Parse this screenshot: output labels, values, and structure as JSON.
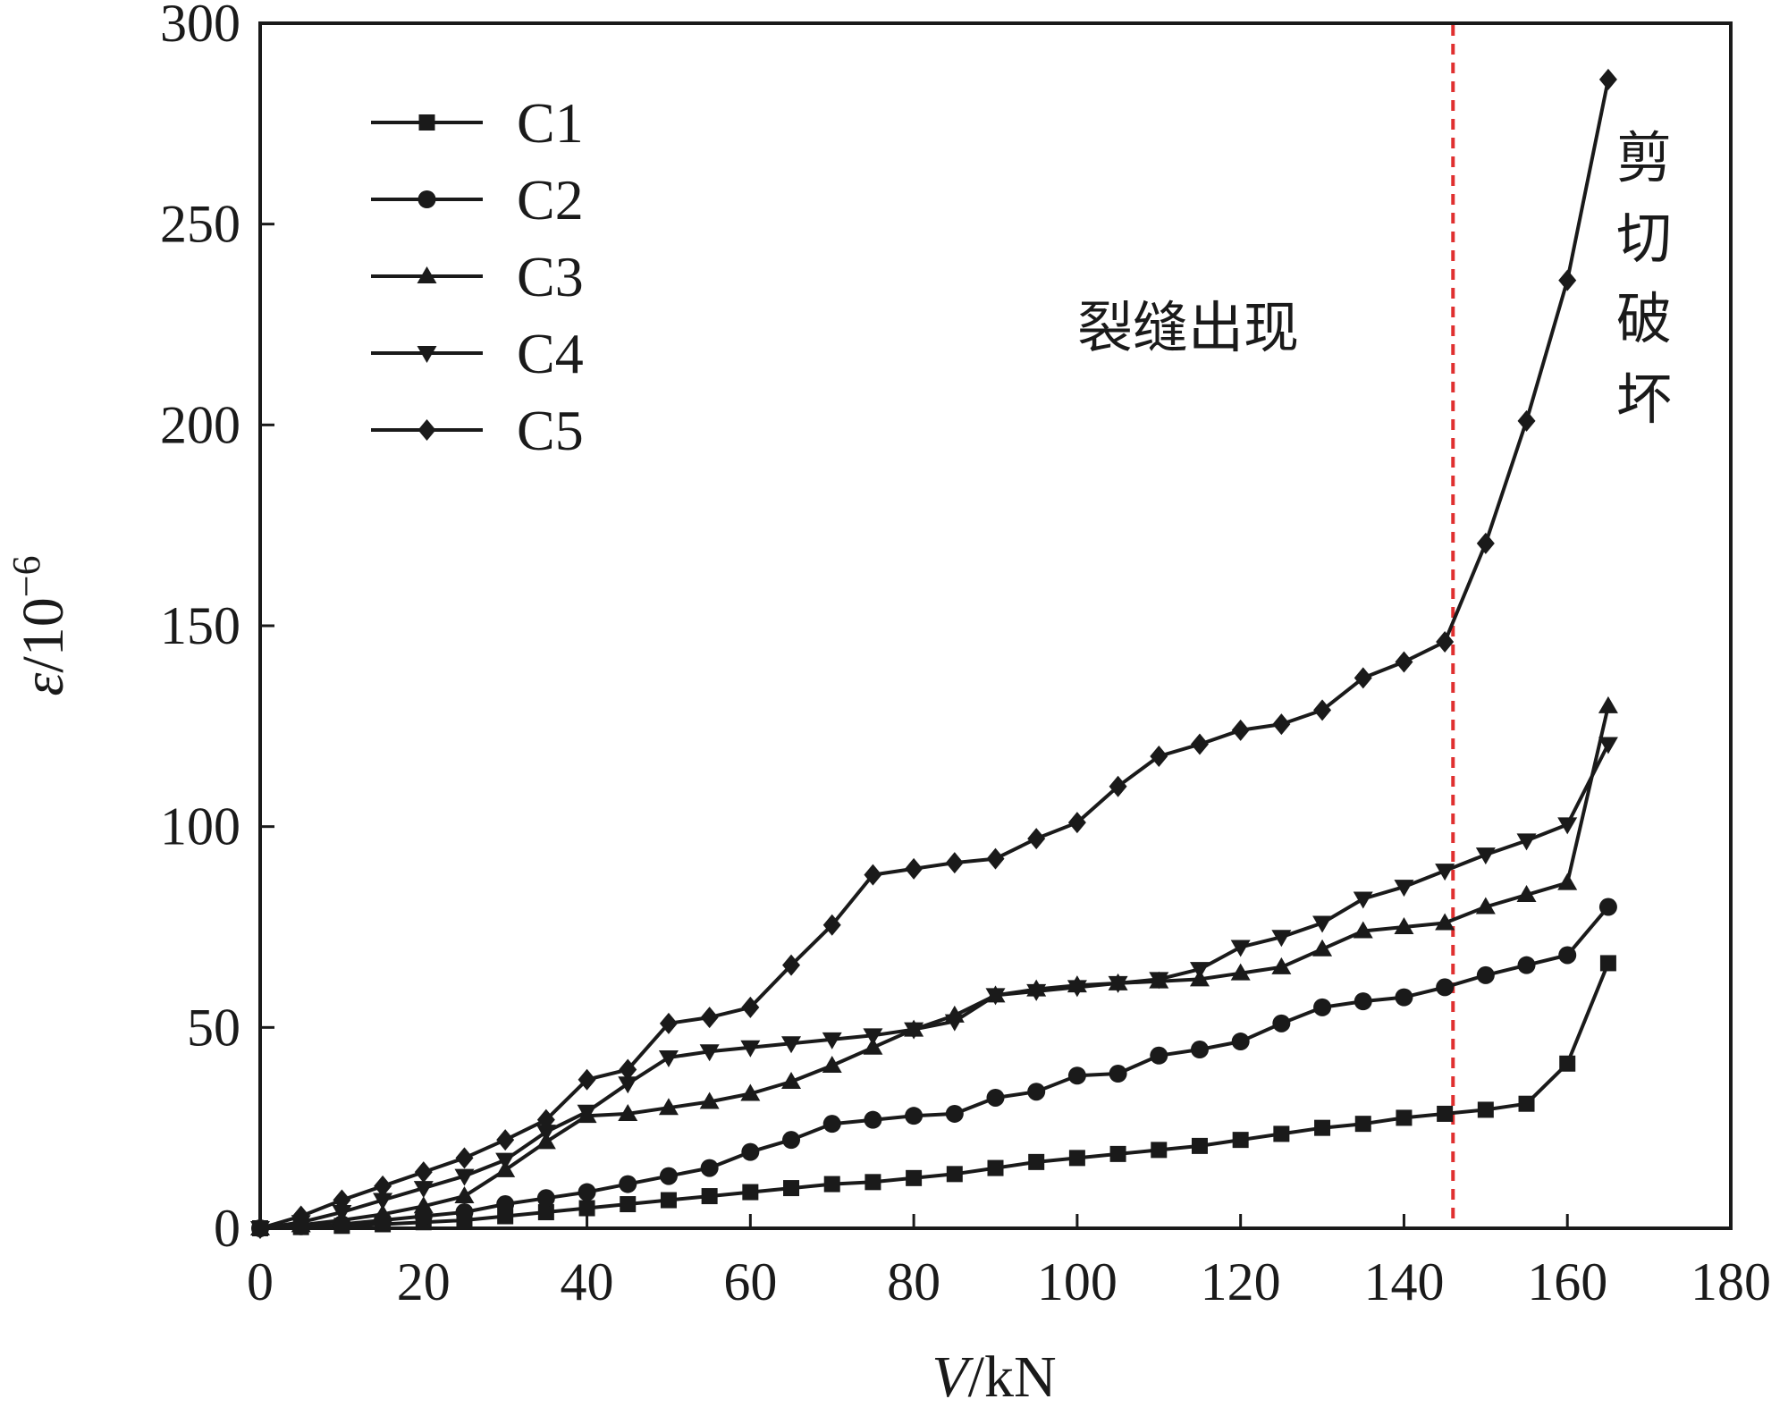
{
  "chart_data": {
    "type": "line",
    "x": [
      0,
      5,
      10,
      15,
      20,
      25,
      30,
      35,
      40,
      45,
      50,
      55,
      60,
      65,
      70,
      75,
      80,
      85,
      90,
      95,
      100,
      105,
      110,
      115,
      120,
      125,
      130,
      135,
      140,
      145,
      150,
      155,
      160,
      165
    ],
    "series": [
      {
        "name": "C1",
        "marker": "square",
        "values": [
          0,
          0.3,
          0.6,
          1,
          1.5,
          2,
          3,
          4,
          5,
          6,
          7,
          8,
          9,
          10,
          11,
          11.5,
          12.5,
          13.5,
          15,
          16.5,
          17.5,
          18.5,
          19.5,
          20.5,
          22,
          23.5,
          25,
          26,
          27.5,
          28.5,
          29.5,
          31,
          41,
          66
        ]
      },
      {
        "name": "C2",
        "marker": "circle",
        "values": [
          0,
          0.5,
          1,
          2,
          3,
          4,
          6,
          7.5,
          9,
          11,
          13,
          15,
          19,
          22,
          26,
          27,
          28,
          28.5,
          32.5,
          34,
          38,
          38.5,
          43,
          44.5,
          46.5,
          51,
          55,
          56.5,
          57.5,
          60,
          63,
          65.5,
          68,
          80
        ]
      },
      {
        "name": "C3",
        "marker": "triangle-up",
        "values": [
          0,
          0.8,
          2,
          3.5,
          5.5,
          8,
          14.5,
          21.5,
          28,
          28.5,
          30,
          31.5,
          33.5,
          36.5,
          40.5,
          45,
          49.5,
          53,
          58,
          59.5,
          60.5,
          61,
          61.5,
          62,
          63.5,
          65,
          69.5,
          74,
          75,
          76,
          80,
          83,
          86,
          130
        ]
      },
      {
        "name": "C4",
        "marker": "triangle-down",
        "values": [
          0,
          1.5,
          4,
          7,
          10,
          13,
          17,
          24,
          29,
          36,
          42.5,
          44,
          45,
          46,
          47,
          48,
          49.5,
          51.5,
          58,
          59,
          60,
          61,
          62,
          64.5,
          70,
          72.5,
          76,
          82,
          85,
          89,
          93,
          96.5,
          100.5,
          120.5
        ]
      },
      {
        "name": "C5",
        "marker": "diamond",
        "values": [
          0,
          3,
          7,
          10.5,
          14,
          17.5,
          22,
          27,
          37,
          39.5,
          51,
          52.5,
          55,
          65.5,
          75.5,
          88,
          89.5,
          91,
          92,
          97,
          101,
          110,
          117.5,
          120.5,
          124,
          125.5,
          129,
          137,
          141,
          146,
          170.5,
          201,
          236,
          286
        ]
      }
    ],
    "xlabel": "V/kN",
    "ylabel": "ε/10⁻⁶",
    "xlim": [
      0,
      180
    ],
    "ylim": [
      0,
      300
    ],
    "xticks": [
      0,
      20,
      40,
      60,
      80,
      100,
      120,
      140,
      160,
      180
    ],
    "yticks": [
      0,
      50,
      100,
      150,
      200,
      250,
      300
    ],
    "grid": false,
    "legend_position": "top-left",
    "reference_line": {
      "x": 146,
      "style": "dashed",
      "color": "#e03030"
    },
    "annotations": {
      "crack": "裂缝出现",
      "shear_failure": [
        "剪",
        "切",
        "破",
        "坏"
      ]
    },
    "colors": {
      "series": "#1a1a1a",
      "reference_line": "#e03030",
      "axis": "#1a1a1a"
    }
  }
}
